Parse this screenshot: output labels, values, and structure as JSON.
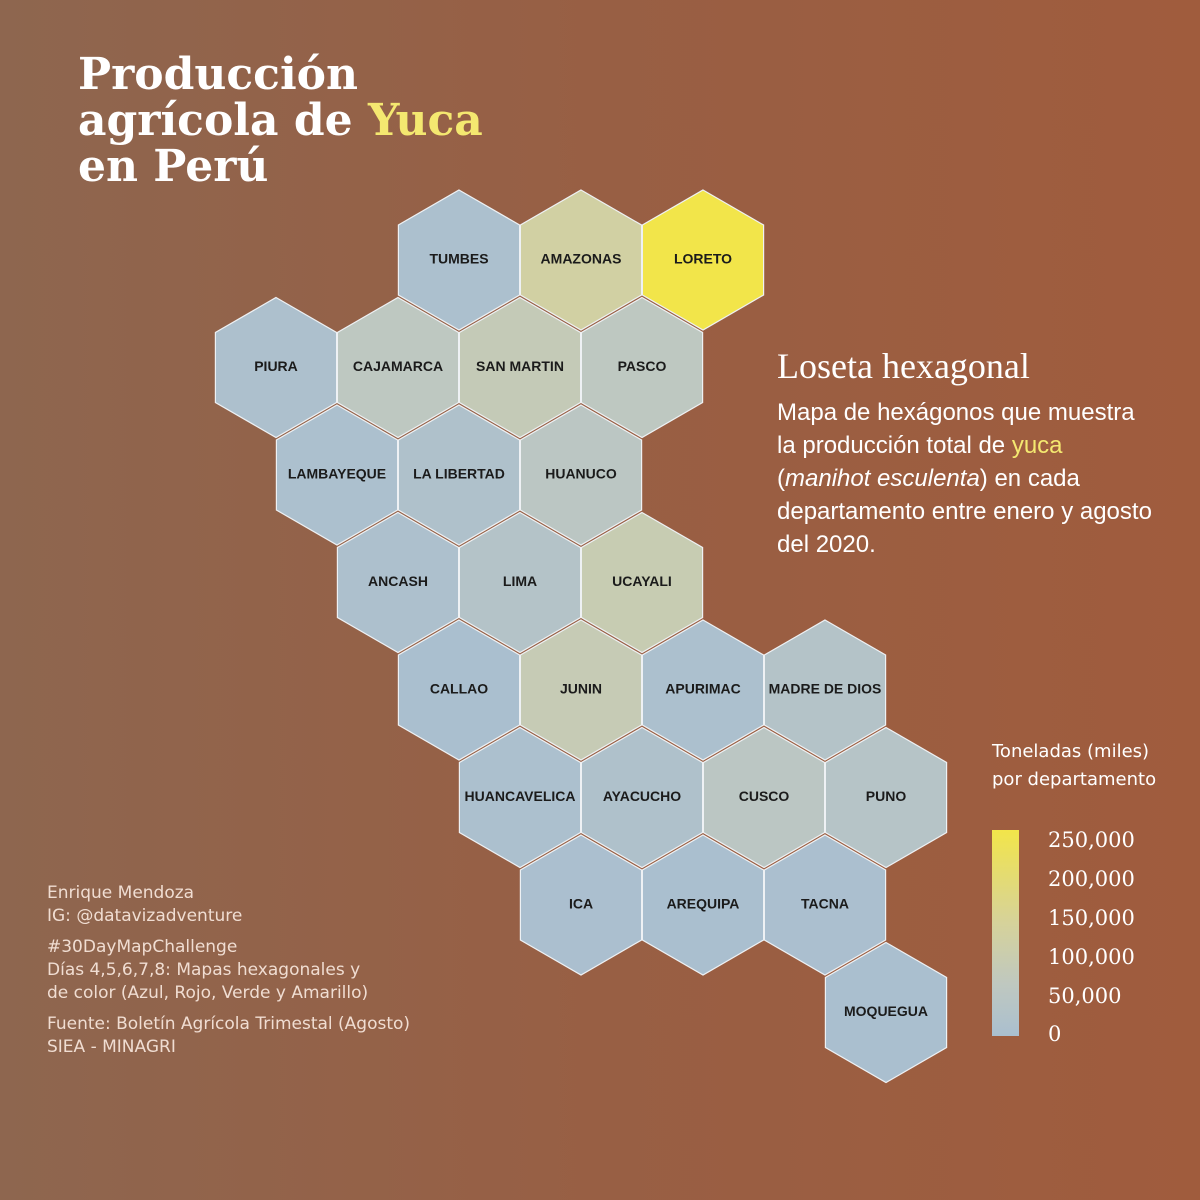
{
  "title": {
    "line1": "Producción",
    "line2_prefix": "agrícola de ",
    "line2_highlight": "Yuca",
    "line3": "en Perú"
  },
  "subtitle": "Loseta hexagonal",
  "description": {
    "part1": "Mapa de hexágonos que muestra la producción total de ",
    "highlight": "yuca",
    "part2": " (",
    "italic": "manihot esculenta",
    "part3": ") en cada departamento entre enero y agosto del 2020."
  },
  "legend": {
    "title_line1": "Toneladas (miles)",
    "title_line2": "por departamento",
    "ticks": [
      "250,000",
      "200,000",
      "150,000",
      "100,000",
      "50,000",
      "0"
    ]
  },
  "credits": {
    "author": "Enrique Mendoza",
    "instagram": "IG: @datavizadventure",
    "challenge": "#30DayMapChallenge",
    "days_line1": "Días 4,5,6,7,8: Mapas hexagonales y",
    "days_line2": "de color (Azul, Rojo, Verde y Amarillo)",
    "source_line1": "Fuente: Boletín Agrícola Trimestal (Agosto)",
    "source_line2": "SIEA - MINAGRI"
  },
  "colors": {
    "highlight": "#f4e870",
    "scale_low": "#aabfcf",
    "scale_high": "#f2e54a"
  },
  "chart_data": {
    "type": "hex tile map",
    "value_label": "Toneladas (miles) por departamento",
    "scale_range": [
      0,
      250000
    ],
    "departments": [
      {
        "name": "TUMBES",
        "value": 5000,
        "row": 0,
        "col": 2
      },
      {
        "name": "AMAZONAS",
        "value": 120000,
        "row": 0,
        "col": 3
      },
      {
        "name": "LORETO",
        "value": 250000,
        "row": 0,
        "col": 4
      },
      {
        "name": "PIURA",
        "value": 10000,
        "row": 1,
        "col": 0
      },
      {
        "name": "CAJAMARCA",
        "value": 60000,
        "row": 1,
        "col": 1
      },
      {
        "name": "SAN MARTIN",
        "value": 80000,
        "row": 1,
        "col": 2
      },
      {
        "name": "PASCO",
        "value": 60000,
        "row": 1,
        "col": 3
      },
      {
        "name": "LAMBAYEQUE",
        "value": 5000,
        "row": 2,
        "col": 1
      },
      {
        "name": "LA LIBERTAD",
        "value": 15000,
        "row": 2,
        "col": 2
      },
      {
        "name": "HUANUCO",
        "value": 50000,
        "row": 2,
        "col": 3
      },
      {
        "name": "ANCASH",
        "value": 8000,
        "row": 3,
        "col": 1
      },
      {
        "name": "LIMA",
        "value": 30000,
        "row": 3,
        "col": 2
      },
      {
        "name": "UCAYALI",
        "value": 90000,
        "row": 3,
        "col": 3
      },
      {
        "name": "CALLAO",
        "value": 0,
        "row": 4,
        "col": 2
      },
      {
        "name": "JUNIN",
        "value": 85000,
        "row": 4,
        "col": 3
      },
      {
        "name": "APURIMAC",
        "value": 5000,
        "row": 4,
        "col": 4
      },
      {
        "name": "MADRE DE DIOS",
        "value": 30000,
        "row": 4,
        "col": 5
      },
      {
        "name": "HUANCAVELICA",
        "value": 5000,
        "row": 5,
        "col": 2
      },
      {
        "name": "AYACUCHO",
        "value": 15000,
        "row": 5,
        "col": 3
      },
      {
        "name": "CUSCO",
        "value": 50000,
        "row": 5,
        "col": 4
      },
      {
        "name": "PUNO",
        "value": 35000,
        "row": 5,
        "col": 5
      },
      {
        "name": "ICA",
        "value": 2000,
        "row": 6,
        "col": 3
      },
      {
        "name": "AREQUIPA",
        "value": 1000,
        "row": 6,
        "col": 4
      },
      {
        "name": "TACNA",
        "value": 2000,
        "row": 6,
        "col": 5
      },
      {
        "name": "MOQUEGUA",
        "value": 1000,
        "row": 7,
        "col": 5
      }
    ]
  }
}
